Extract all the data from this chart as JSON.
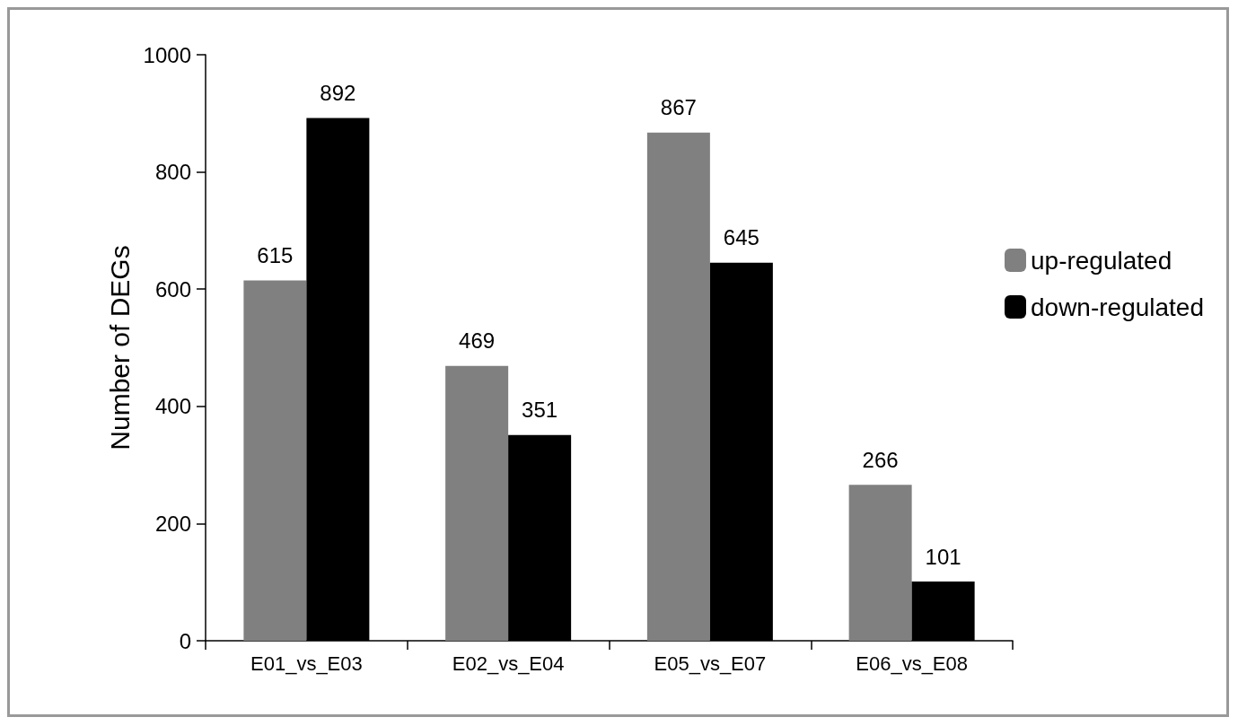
{
  "chart_data": {
    "type": "bar",
    "ylabel": "Number of DEGs",
    "categories": [
      "E01_vs_E03",
      "E02_vs_E04",
      "E05_vs_E07",
      "E06_vs_E08"
    ],
    "series": [
      {
        "name": "up-regulated",
        "color": "#808080",
        "values": [
          615,
          469,
          867,
          266
        ]
      },
      {
        "name": "down-regulated",
        "color": "#000000",
        "values": [
          892,
          351,
          645,
          101
        ]
      }
    ],
    "ylim": [
      0,
      1000
    ],
    "yticks": [
      0,
      200,
      400,
      600,
      800,
      1000
    ],
    "data_labels": true,
    "grid": false,
    "legend": "right"
  }
}
